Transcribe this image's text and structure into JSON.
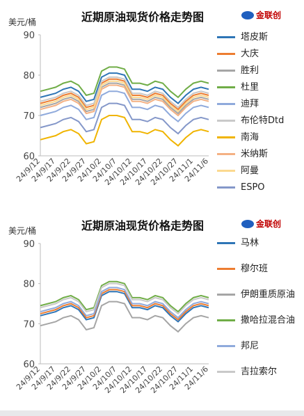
{
  "logo": "金联创",
  "chart_data": [
    {
      "type": "line",
      "title": "近期原油现货价格走势图",
      "y_label": "美元/桶",
      "categories": [
        "24/9/12",
        null,
        "24/9/17",
        null,
        "24/9/22",
        null,
        "24/9/27",
        null,
        "24/10/2",
        null,
        "24/10/7",
        null,
        "24/10/12",
        null,
        "24/10/17",
        null,
        "24/10/22",
        null,
        "24/10/27",
        null,
        "24/11/1",
        null,
        "24/11/6"
      ],
      "ylim": [
        60,
        90
      ],
      "yticks": [
        60,
        70,
        80,
        90
      ],
      "series": [
        {
          "name": "塔皮斯",
          "color": "#2e75b6",
          "values": [
            74.5,
            75,
            75.5,
            76.5,
            77,
            76,
            73.5,
            74,
            79.5,
            80.5,
            80.5,
            80,
            76.5,
            76.5,
            76,
            77,
            76.5,
            74.5,
            73,
            75,
            76.5,
            77,
            76.5
          ]
        },
        {
          "name": "大庆",
          "color": "#ed7d31",
          "values": [
            73,
            73.5,
            74,
            75,
            75.5,
            74.5,
            72,
            72.5,
            78,
            79,
            79,
            78.5,
            75,
            75,
            74.5,
            75.5,
            75,
            73,
            71.5,
            73.5,
            75,
            75.5,
            75
          ]
        },
        {
          "name": "胜利",
          "color": "#a5a5a5",
          "values": [
            72,
            72.5,
            73,
            74,
            74.5,
            73.5,
            71,
            71.5,
            77,
            78,
            78,
            77.5,
            74,
            74,
            73.5,
            74.5,
            74,
            72,
            70.5,
            72.5,
            74,
            74.5,
            74
          ]
        },
        {
          "name": "杜里",
          "color": "#70ad47",
          "values": [
            76,
            76.5,
            77,
            78,
            78.5,
            77.5,
            75,
            75.5,
            81,
            82,
            82,
            81.5,
            78,
            78,
            77.5,
            78.5,
            78,
            76,
            74.5,
            76.5,
            78,
            78.5,
            78
          ]
        },
        {
          "name": "迪拜",
          "color": "#8faadc",
          "values": [
            70,
            70.5,
            71,
            72,
            72.5,
            71.5,
            69,
            69.5,
            75,
            76,
            76,
            75.5,
            72,
            72,
            71.5,
            72.5,
            72,
            70,
            68.5,
            70.5,
            72,
            72.5,
            72
          ]
        },
        {
          "name": "布伦特Dtd",
          "color": "#c9c9c9",
          "values": [
            73.5,
            74,
            74.5,
            75.5,
            76,
            75,
            72.5,
            73,
            78.5,
            79.5,
            79.5,
            79,
            75.5,
            75.5,
            75,
            76,
            75.5,
            73.5,
            72,
            74,
            75.5,
            76,
            75.5
          ]
        },
        {
          "name": "南海",
          "color": "#f0b400",
          "values": [
            64,
            64.5,
            65,
            66,
            66.5,
            65.5,
            63,
            63.5,
            69,
            70,
            70,
            69.5,
            66,
            66,
            65.5,
            66.5,
            66,
            64,
            62.5,
            64.5,
            66,
            66.5,
            66
          ]
        },
        {
          "name": "米纳斯",
          "color": "#f4b183",
          "values": [
            71.5,
            72,
            72.5,
            73.5,
            74,
            73,
            70.5,
            71,
            76.5,
            77.5,
            77.5,
            77,
            73.5,
            73.5,
            73,
            74,
            73.5,
            71.5,
            70,
            72,
            73.5,
            74,
            73.5
          ]
        },
        {
          "name": "阿曼",
          "color": "#fbd98f",
          "values": [
            72.5,
            73,
            73.5,
            74.5,
            75,
            74,
            71.5,
            72,
            77.5,
            78.5,
            78.5,
            78,
            74.5,
            74.5,
            74,
            75,
            74.5,
            72.5,
            71,
            73,
            74.5,
            75,
            74.5
          ]
        },
        {
          "name": "ESPO",
          "color": "#8497c9",
          "values": [
            67,
            67.5,
            68,
            69,
            69.5,
            68.5,
            66,
            66.5,
            72,
            73,
            73,
            72.5,
            69,
            69,
            68.5,
            69.5,
            69,
            67,
            65.5,
            67.5,
            69,
            69.5,
            69
          ]
        }
      ]
    },
    {
      "type": "line",
      "title": "近期原油现货价格走势图",
      "y_label": "美元/桶",
      "categories": [
        "24/9/12",
        null,
        "24/9/17",
        null,
        "24/9/22",
        null,
        "24/9/27",
        null,
        "24/10/2",
        null,
        "24/10/7",
        null,
        "24/10/12",
        null,
        "24/10/17",
        null,
        "24/10/22",
        null,
        "24/10/27",
        null,
        "24/11/1",
        null,
        "24/11/6"
      ],
      "ylim": [
        60,
        90
      ],
      "yticks": [
        60,
        70,
        80,
        90
      ],
      "series": [
        {
          "name": "马林",
          "color": "#2e75b6",
          "values": [
            72,
            72.5,
            73,
            74,
            74.5,
            73.5,
            71,
            71.5,
            77,
            78,
            78,
            77.5,
            74,
            74,
            73.5,
            74.5,
            74,
            72,
            70.5,
            72.5,
            74,
            74.5,
            74
          ]
        },
        {
          "name": "穆尔班",
          "color": "#ed7d31",
          "values": [
            72.5,
            73,
            73.5,
            74.5,
            75,
            74,
            71.5,
            72,
            77.5,
            78.5,
            78.5,
            78,
            74.5,
            74.5,
            74,
            75,
            74.5,
            72.5,
            71,
            73,
            74.5,
            75,
            74.5
          ]
        },
        {
          "name": "伊朗重质原油",
          "color": "#a5a5a5",
          "values": [
            69.5,
            70,
            70.5,
            71.5,
            72,
            71,
            68.5,
            69,
            74.5,
            75.5,
            75.5,
            75,
            71.5,
            71.5,
            71,
            72,
            71.5,
            69.5,
            68,
            70,
            71.5,
            72,
            71.5
          ]
        },
        {
          "name": "撒哈拉混合油",
          "color": "#70ad47",
          "values": [
            74.5,
            75,
            75.5,
            76.5,
            77,
            76,
            73.5,
            74,
            79.5,
            80.5,
            80.5,
            80,
            76.5,
            76.5,
            76,
            77,
            76.5,
            74.5,
            73,
            75,
            76.5,
            77,
            76.5
          ]
        },
        {
          "name": "邦尼",
          "color": "#8faadc",
          "values": [
            73,
            73.5,
            74,
            75,
            75.5,
            74.5,
            72,
            72.5,
            78,
            79,
            79,
            78.5,
            75,
            75,
            74.5,
            75.5,
            75,
            73,
            71.5,
            73.5,
            75,
            75.5,
            75
          ]
        },
        {
          "name": "吉拉索尔",
          "color": "#c9c9c9",
          "values": [
            74,
            74.5,
            75,
            76,
            76.5,
            75.5,
            73,
            73.5,
            79,
            80,
            80,
            79.5,
            76,
            76,
            75.5,
            76.5,
            76,
            74,
            72.5,
            74.5,
            76,
            76.5,
            76
          ]
        }
      ]
    }
  ]
}
